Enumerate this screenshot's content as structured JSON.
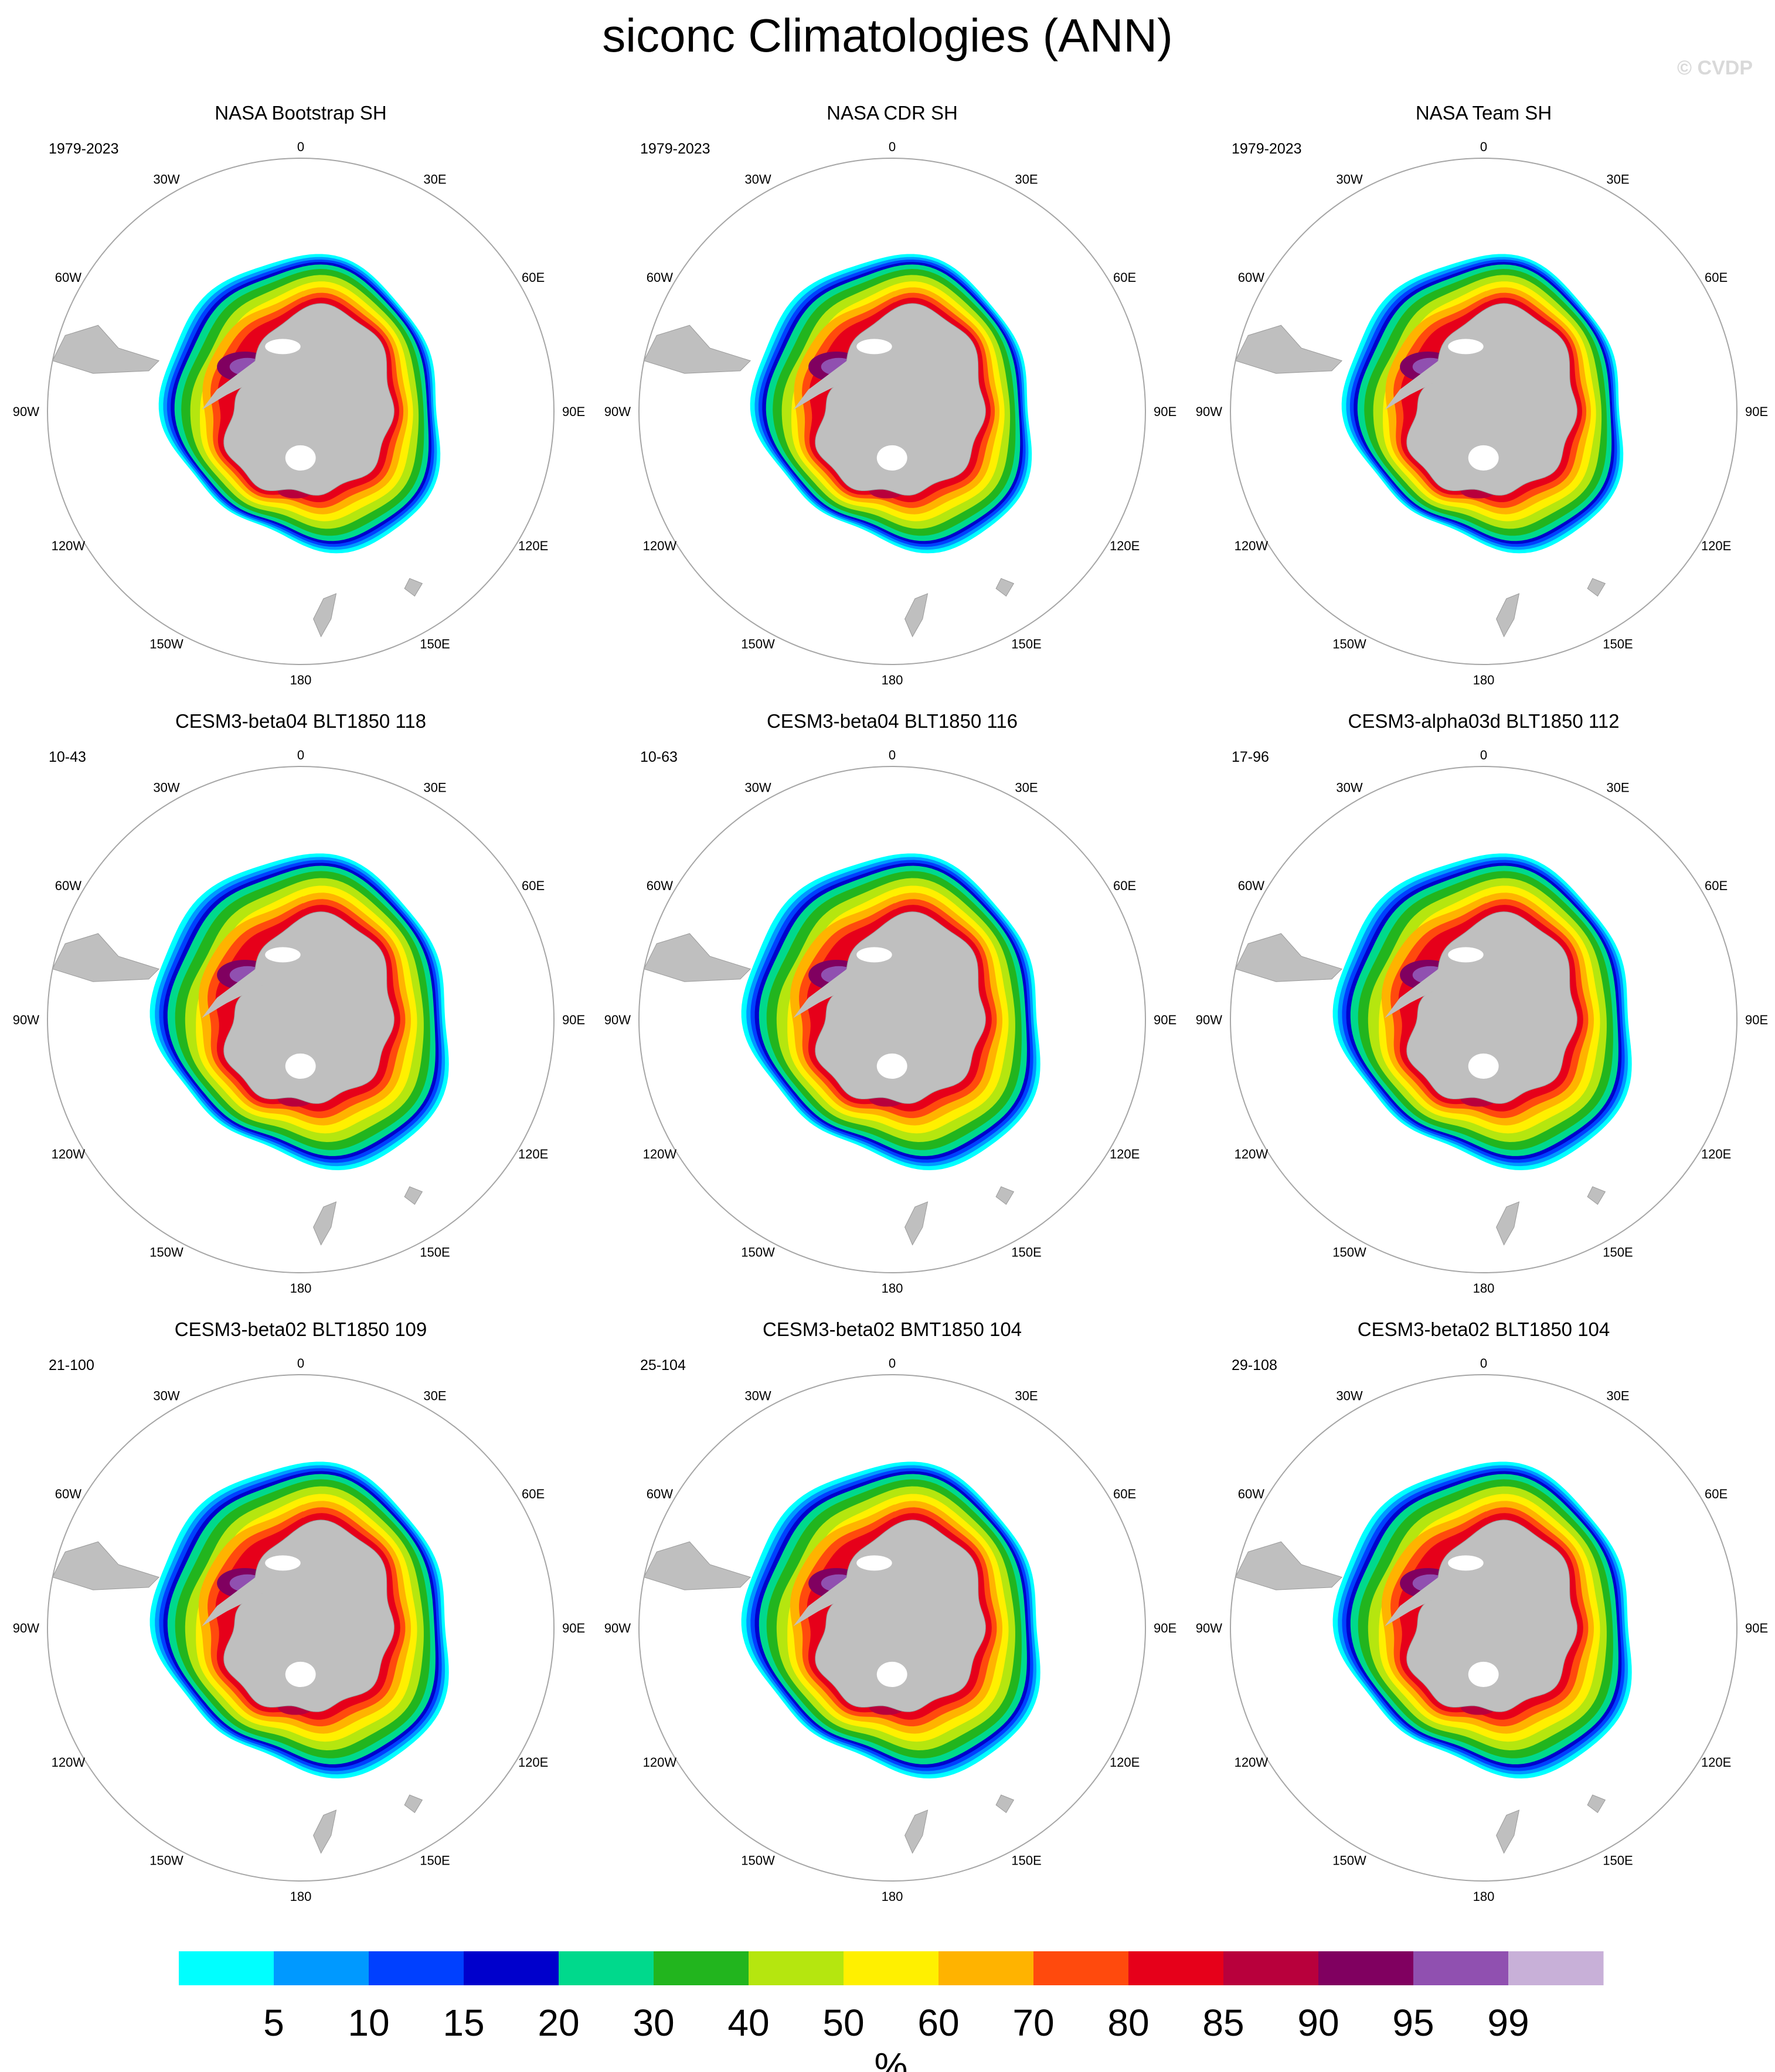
{
  "figure": {
    "title": "siconc Climatologies (ANN)",
    "watermark": "© CVDP"
  },
  "map_style": {
    "land_color": "#bfbfbf",
    "ocean_color": "#ffffff",
    "border_color": "#a6a6a6"
  },
  "lon_labels": [
    "0",
    "30E",
    "60E",
    "90E",
    "120E",
    "150E",
    "180",
    "150W",
    "120W",
    "90W",
    "60W",
    "30W"
  ],
  "panels": [
    {
      "title": "NASA Bootstrap SH",
      "period": "1979-2023",
      "variant": "obs"
    },
    {
      "title": "NASA CDR SH",
      "period": "1979-2023",
      "variant": "obs"
    },
    {
      "title": "NASA Team SH",
      "period": "1979-2023",
      "variant": "obs"
    },
    {
      "title": "CESM3-beta04 BLT1850 118",
      "period": "10-43",
      "variant": "model"
    },
    {
      "title": "CESM3-beta04 BLT1850 116",
      "period": "10-63",
      "variant": "model"
    },
    {
      "title": "CESM3-alpha03d BLT1850 112",
      "period": "17-96",
      "variant": "model"
    },
    {
      "title": "CESM3-beta02 BLT1850 109",
      "period": "21-100",
      "variant": "model"
    },
    {
      "title": "CESM3-beta02 BMT1850 104",
      "period": "25-104",
      "variant": "model"
    },
    {
      "title": "CESM3-beta02 BLT1850 104",
      "period": "29-108",
      "variant": "model"
    }
  ],
  "colorbar": {
    "unit": "%",
    "colors": [
      "#00ffff",
      "#0099ff",
      "#0040ff",
      "#0000cc",
      "#00d98c",
      "#22b51e",
      "#b5e60f",
      "#fff000",
      "#ffb300",
      "#ff4a0d",
      "#e6001a",
      "#b8003c",
      "#800060",
      "#9050b0",
      "#c8b0d8"
    ],
    "labels": [
      "5",
      "10",
      "15",
      "20",
      "30",
      "40",
      "50",
      "60",
      "70",
      "80",
      "85",
      "90",
      "95",
      "99"
    ]
  }
}
